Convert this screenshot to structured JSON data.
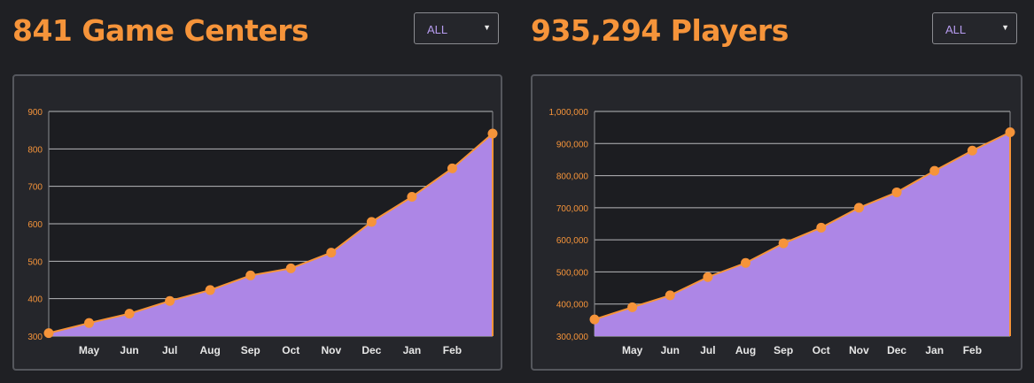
{
  "colors": {
    "accent": "#f6943a",
    "area_fill": "#ad86e6",
    "grid": "#b8b9bc",
    "axis_tick_text": "#f6943a",
    "month_text": "#e6e6e6",
    "select_text": "#b79cf0"
  },
  "left": {
    "title": "841 Game Centers",
    "filter": {
      "selected": "ALL",
      "icon": "dropdown-arrow-icon"
    }
  },
  "right": {
    "title": "935,294 Players",
    "filter": {
      "selected": "ALL",
      "icon": "dropdown-arrow-icon"
    }
  },
  "chart_data": [
    {
      "type": "area",
      "title": "841 Game Centers",
      "categories": [
        "",
        "May",
        "Jun",
        "Jul",
        "Aug",
        "Sep",
        "Oct",
        "Nov",
        "Dec",
        "Jan",
        "Feb",
        ""
      ],
      "values": [
        308,
        335,
        360,
        394,
        423,
        462,
        481,
        523,
        605,
        672,
        748,
        841
      ],
      "yticks": [
        300,
        400,
        500,
        600,
        700,
        800,
        900
      ],
      "ytick_labels": [
        "300",
        "400",
        "500",
        "600",
        "700",
        "800",
        "900"
      ],
      "ylim": [
        300,
        900
      ],
      "grid": true,
      "xlabel": "",
      "ylabel": ""
    },
    {
      "type": "area",
      "title": "935,294 Players",
      "categories": [
        "",
        "May",
        "Jun",
        "Jul",
        "Aug",
        "Sep",
        "Oct",
        "Nov",
        "Dec",
        "Jan",
        "Feb",
        ""
      ],
      "values": [
        352000,
        390000,
        427000,
        484000,
        528000,
        589000,
        638000,
        700000,
        748000,
        815000,
        878000,
        935294
      ],
      "yticks": [
        300000,
        400000,
        500000,
        600000,
        700000,
        800000,
        900000,
        1000000
      ],
      "ytick_labels": [
        "300,000",
        "400,000",
        "500,000",
        "600,000",
        "700,000",
        "800,000",
        "900,000",
        "1,000,000"
      ],
      "ylim": [
        300000,
        1000000
      ],
      "grid": true,
      "xlabel": "",
      "ylabel": ""
    }
  ]
}
